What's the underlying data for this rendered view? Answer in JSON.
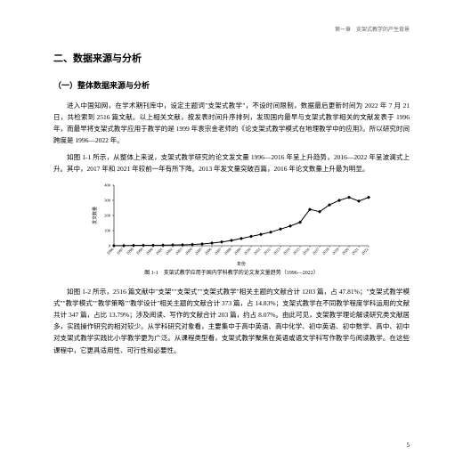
{
  "header": {
    "chapter_label": "第一章　支架式教学的产生背景"
  },
  "section": {
    "title": "二、数据来源与分析",
    "subtitle": "（一）整体数据来源与分析"
  },
  "paragraphs": {
    "p1": "进入中国知网，在学术期刊库中，设定主题词\"支架式教学\"，不设时间限制，数据最后更新时间为 2022 年 7 月 21 日，共检索到 2516 篇文献。以上相关文献，按发表时间升序排列，发现国内最早与支架式教学相关的文献发表于 1996 年，而最早将支架式教学应用于教学的是 1999 年袁宗金老师的《论支架式教学模式在地理教学中的应用》。所以研究时间跨度是 1996—2022 年。",
    "p2": "如图 1-1 所示，从整体上来说，支架式教学研究的论文发文量 1996—2016 年呈上升趋势，2016—2022 年呈波澜式上升。其中，2017 年和 2021 年较前一年有所下降。2013 年发文量突破百篇，2016 年论文数量上升最为明显。",
    "p3": "如图 1-2 所示，2516 篇文献中\"支架\"\"支架式\"\"支架式教学\"相关主题的文献合计 1203 篇，占 47.81%；\"支架式教学模式\"\"教学模式\"\"教学策略\"\"教学设计\"相关主题的文献合计 373 篇，占 14.83%；支架式教学在不同教学程度学科运用的文献共计 347 篇，占比 13.79%；涉及阅读、写作的文献合计 203 篇，约占 8.07%。由此可见，支架教学理论解读研究类文献居多，实践操作研究的相对较少。从学科研究对象看，主要集中于高中英语、高中化学、初中英语、初中数学、高中、初中对支架式教学实践比小学教学更为广泛。从课程类型看，支架式教学聚焦在英语或语文学科写作教学与阅读教学。在这些课程中，它更具适用性、可行性和必要性。"
  },
  "chart": {
    "type": "line",
    "ylabel": "发文数量",
    "xlabel": "年份",
    "caption": "图 1-1　支架式教学应用于国内学科教学的论文发文量趋势（1996—2022）",
    "ylim": [
      0,
      400
    ],
    "ytick_step": 100,
    "yticks": [
      0,
      100,
      200,
      300,
      400
    ],
    "xticks": [
      "1996",
      "1997",
      "1998",
      "1999",
      "2000",
      "2001",
      "2002",
      "2003",
      "2004",
      "2005",
      "2006",
      "2007",
      "2008",
      "2009",
      "2010",
      "2011",
      "2012",
      "2013",
      "2014",
      "2015",
      "2016",
      "2017",
      "2018",
      "2019",
      "2020",
      "2021",
      "2022"
    ],
    "values": [
      1,
      1,
      2,
      3,
      3,
      4,
      5,
      6,
      8,
      12,
      18,
      25,
      35,
      48,
      62,
      75,
      90,
      110,
      130,
      155,
      240,
      225,
      270,
      300,
      320,
      295,
      320
    ],
    "line_color": "#000000",
    "line_width": 1,
    "marker": "diamond",
    "marker_size": 2,
    "marker_color": "#000000",
    "background_color": "#ffffff",
    "axis_color": "#000000",
    "tick_fontsize": 4.5,
    "label_fontsize": 5
  },
  "page_number": "5"
}
